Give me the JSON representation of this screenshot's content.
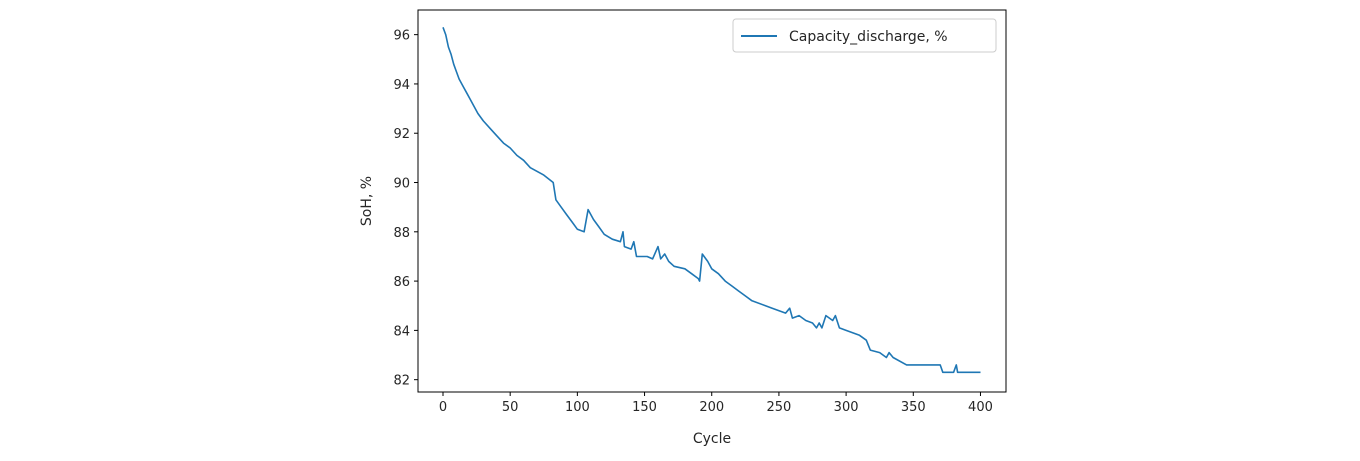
{
  "chart_data": {
    "type": "line",
    "title": "",
    "xlabel": "Cycle",
    "ylabel": "SoH, %",
    "xlim": [
      -18.6,
      419
    ],
    "ylim": [
      81.5,
      97.0
    ],
    "xticks": [
      0,
      50,
      100,
      150,
      200,
      250,
      300,
      350,
      400
    ],
    "yticks": [
      82,
      84,
      86,
      88,
      90,
      92,
      94,
      96
    ],
    "grid": false,
    "legend_position": "top-right",
    "series": [
      {
        "name": "Capacity_discharge, %",
        "color": "#1f77b4",
        "x": [
          0,
          2,
          4,
          6,
          8,
          10,
          12,
          15,
          18,
          20,
          23,
          26,
          30,
          35,
          40,
          45,
          50,
          55,
          60,
          65,
          75,
          82,
          84,
          88,
          92,
          96,
          100,
          105,
          108,
          112,
          116,
          120,
          126,
          132,
          134,
          135,
          140,
          142,
          144,
          152,
          156,
          160,
          162,
          165,
          168,
          172,
          180,
          185,
          190,
          191,
          193,
          197,
          200,
          205,
          210,
          215,
          220,
          225,
          230,
          240,
          245,
          255,
          258,
          260,
          265,
          270,
          275,
          278,
          280,
          282,
          285,
          290,
          292,
          295,
          300,
          310,
          315,
          318,
          325,
          330,
          332,
          335,
          345,
          355,
          370,
          372,
          380,
          382,
          383,
          400
        ],
        "y": [
          96.3,
          96.0,
          95.5,
          95.2,
          94.8,
          94.5,
          94.2,
          93.9,
          93.6,
          93.4,
          93.1,
          92.8,
          92.5,
          92.2,
          91.9,
          91.6,
          91.4,
          91.1,
          90.9,
          90.6,
          90.3,
          90.0,
          89.3,
          89.0,
          88.7,
          88.4,
          88.1,
          88.0,
          88.9,
          88.5,
          88.2,
          87.9,
          87.7,
          87.6,
          88.0,
          87.4,
          87.3,
          87.6,
          87.0,
          87.0,
          86.9,
          87.4,
          86.9,
          87.1,
          86.8,
          86.6,
          86.5,
          86.3,
          86.1,
          86.0,
          87.1,
          86.8,
          86.5,
          86.3,
          86.0,
          85.8,
          85.6,
          85.4,
          85.2,
          85.0,
          84.9,
          84.7,
          84.9,
          84.5,
          84.6,
          84.4,
          84.3,
          84.1,
          84.3,
          84.1,
          84.6,
          84.4,
          84.6,
          84.1,
          84.0,
          83.8,
          83.6,
          83.2,
          83.1,
          82.9,
          83.1,
          82.9,
          82.6,
          82.6,
          82.6,
          82.3,
          82.3,
          82.6,
          82.3,
          82.3
        ]
      }
    ]
  }
}
